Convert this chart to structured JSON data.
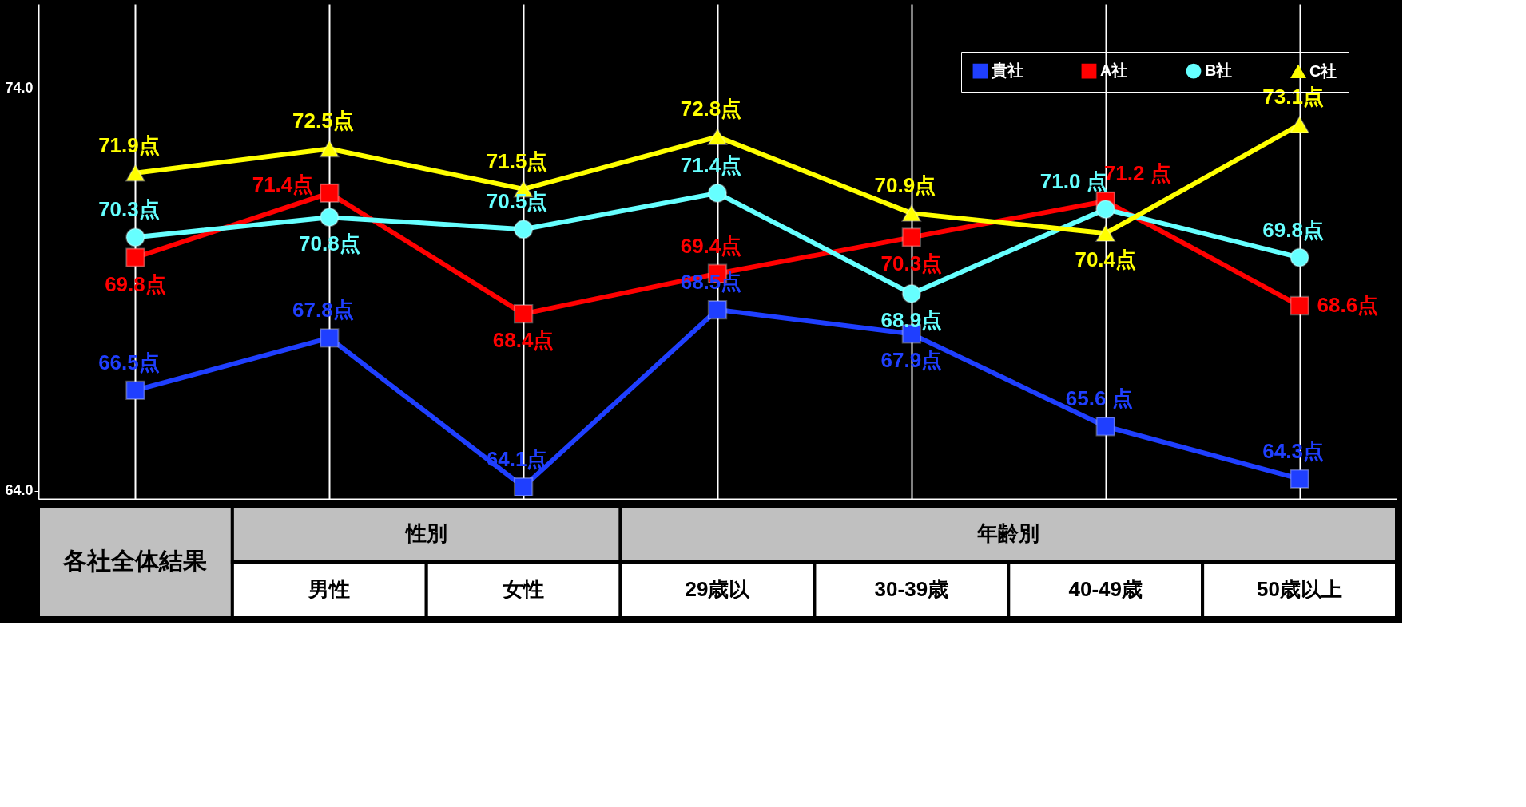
{
  "chart_data": {
    "type": "line",
    "categories": [
      "各社全体結果",
      "男性",
      "女性",
      "29歳以",
      "30-39歳",
      "40-49歳",
      "50歳以上"
    ],
    "annotations": [
      "性別",
      "年齢別"
    ],
    "ylim": [
      63.8,
      76.1
    ],
    "yticks": [
      {
        "value": 64,
        "label": "64.0"
      },
      {
        "value": 74,
        "label": "74.0"
      }
    ],
    "grid": "x",
    "legend": "top right",
    "line_style": "solid",
    "series": [
      {
        "name": "貴社",
        "color": "#1f3fff",
        "marker": "square",
        "values": [
          66.5,
          67.8,
          64.1,
          68.5,
          67.9,
          65.6,
          64.3
        ],
        "value_labels": [
          "66.5点",
          "67.8点",
          "64.1点",
          "68.5点",
          "67.9点",
          "65.6 点",
          "64.3点"
        ]
      },
      {
        "name": "A社",
        "color": "#ff0000",
        "marker": "square",
        "values": [
          69.8,
          71.4,
          68.4,
          69.4,
          70.3,
          71.2,
          68.6
        ],
        "value_labels": [
          "69.8点",
          "71.4点",
          "68.4点",
          "69.4点",
          "70.3点",
          "71.2 点",
          "68.6点"
        ]
      },
      {
        "name": "B社",
        "color": "#66ffff",
        "marker": "circle",
        "values": [
          70.3,
          70.8,
          70.5,
          71.4,
          68.9,
          71.0,
          69.8
        ],
        "value_labels": [
          "70.3点",
          "70.8点",
          "70.5点",
          "71.4点",
          "68.9点",
          "71.0 点",
          "69.8点"
        ]
      },
      {
        "name": "C社",
        "color": "#ffff00",
        "marker": "triangle",
        "values": [
          71.9,
          72.5,
          71.5,
          72.8,
          70.9,
          70.4,
          73.1
        ],
        "value_labels": [
          "71.9点",
          "72.5点",
          "71.5点",
          "72.8点",
          "70.9点",
          "70.4点",
          "73.1点"
        ]
      }
    ]
  }
}
